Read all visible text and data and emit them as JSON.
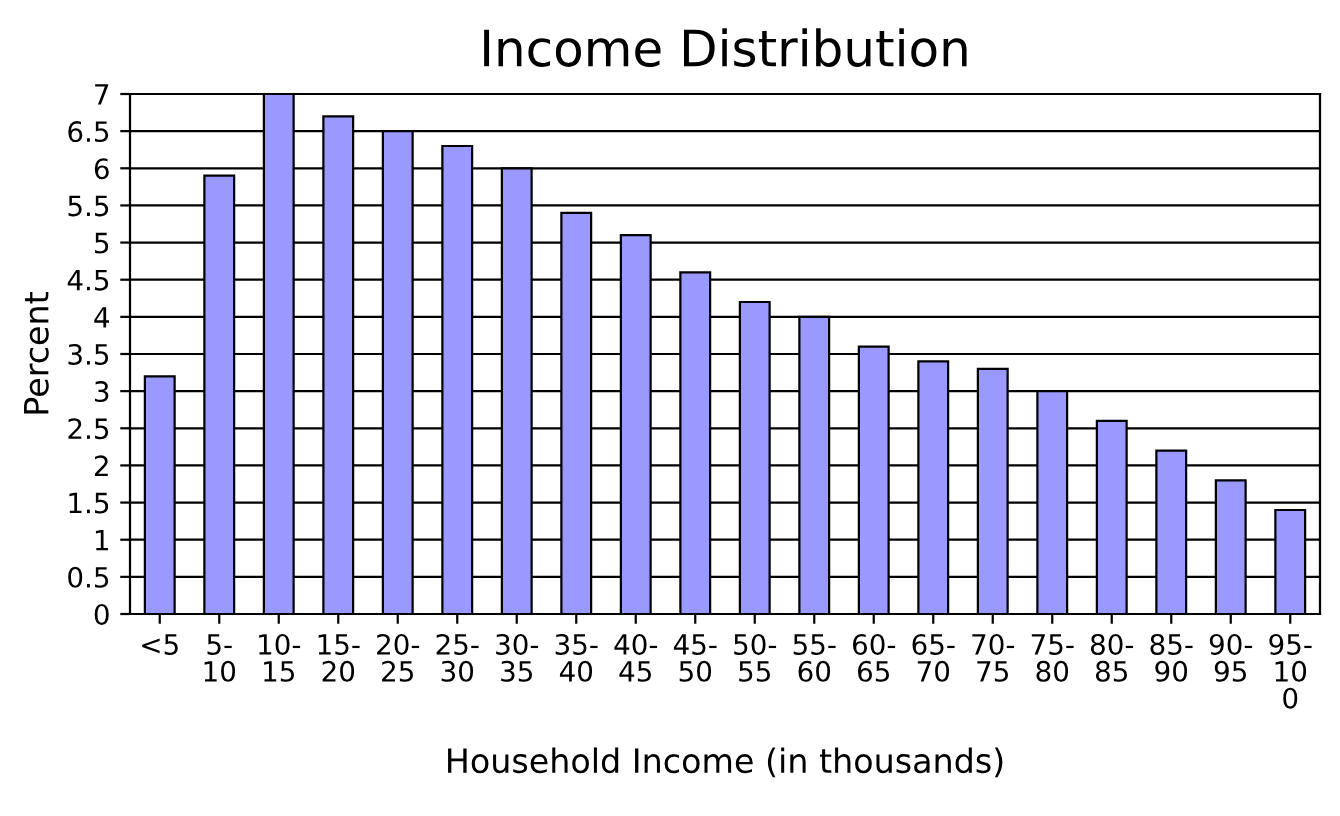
{
  "chart_data": {
    "type": "bar",
    "title": "Income Distribution",
    "xlabel": "Household Income (in thousands)",
    "ylabel": "Percent",
    "categories": [
      "<5",
      "5-10",
      "10-15",
      "15-20",
      "20-25",
      "25-30",
      "30-35",
      "35-40",
      "40-45",
      "45-50",
      "50-55",
      "55-60",
      "60-65",
      "65-70",
      "70-75",
      "75-80",
      "80-85",
      "85-90",
      "90-95",
      "95-100"
    ],
    "values": [
      3.2,
      5.9,
      7.0,
      6.7,
      6.5,
      6.3,
      6.0,
      5.4,
      5.1,
      4.6,
      4.2,
      4.0,
      3.6,
      3.4,
      3.3,
      3.0,
      2.6,
      2.2,
      1.8,
      1.4
    ],
    "color": "#9999ff",
    "ylim": [
      0,
      7
    ],
    "yticks": [
      0,
      0.5,
      1,
      1.5,
      2,
      2.5,
      3,
      3.5,
      4,
      4.5,
      5,
      5.5,
      6,
      6.5,
      7
    ],
    "grid": "y"
  }
}
